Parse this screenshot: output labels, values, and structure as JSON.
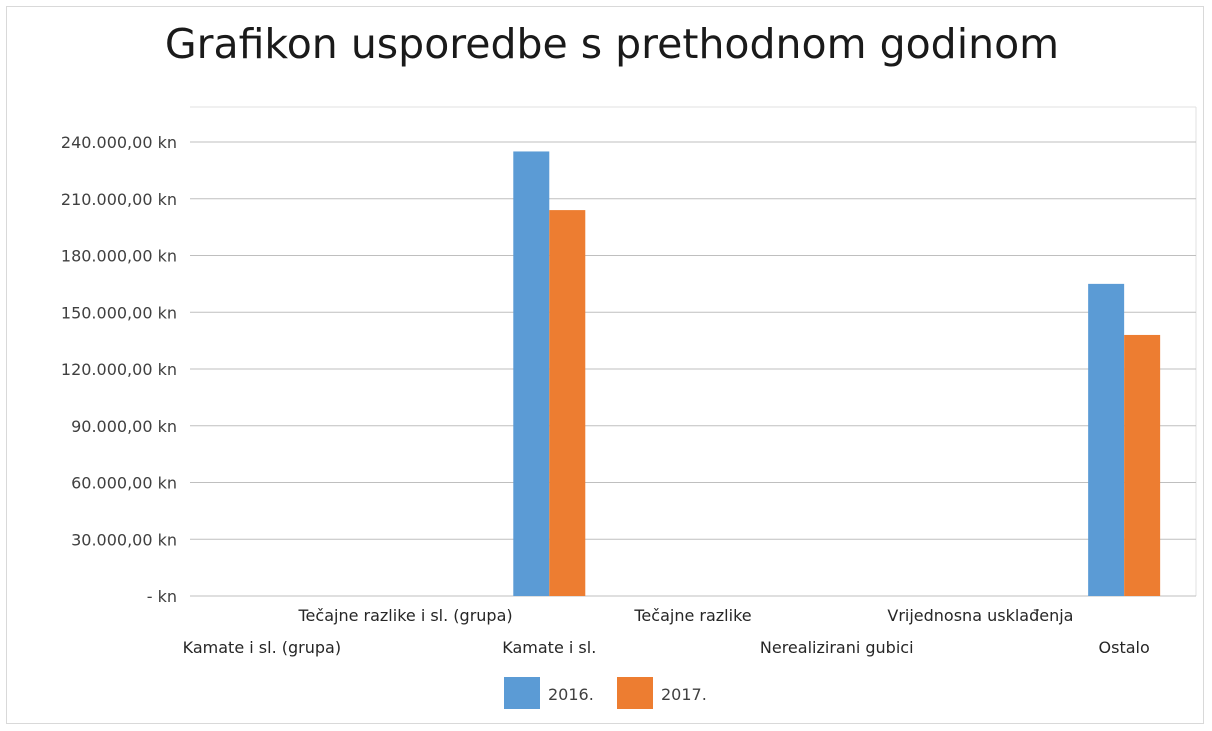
{
  "chart_data": {
    "type": "bar",
    "title": "Grafikon usporedbe s prethodnom godinom",
    "categories": [
      "Kamate i sl. (grupa)",
      "Tečajne razlike i sl. (grupa)",
      "Kamate i sl.",
      "Tečajne razlike",
      "Nerealizirani gubici",
      "Vrijednosna usklađenja",
      "Ostalo"
    ],
    "series": [
      {
        "name": "2016.",
        "color": "#5b9bd5",
        "values": [
          0,
          0,
          235000,
          0,
          0,
          0,
          165000
        ]
      },
      {
        "name": "2017.",
        "color": "#ed7d31",
        "values": [
          0,
          0,
          204000,
          0,
          0,
          0,
          138000
        ]
      }
    ],
    "ylim": [
      0,
      240000
    ],
    "yticks": [
      {
        "value": 0,
        "label": "-   kn"
      },
      {
        "value": 30000,
        "label": "30.000,00 kn"
      },
      {
        "value": 60000,
        "label": "60.000,00 kn"
      },
      {
        "value": 90000,
        "label": "90.000,00 kn"
      },
      {
        "value": 120000,
        "label": "120.000,00 kn"
      },
      {
        "value": 150000,
        "label": "150.000,00 kn"
      },
      {
        "value": 180000,
        "label": "180.000,00 kn"
      },
      {
        "value": 210000,
        "label": "210.000,00 kn"
      },
      {
        "value": 240000,
        "label": "240.000,00 kn"
      }
    ],
    "grid": true,
    "gridColor": "#bfbfbf",
    "legend": "bottom"
  }
}
